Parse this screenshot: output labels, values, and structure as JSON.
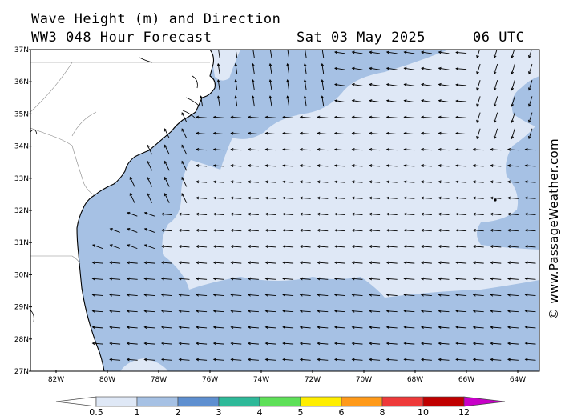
{
  "header": {
    "line1": "Wave Height (m) and Direction",
    "line2": "WW3 048 Hour Forecast",
    "date": "Sat 03 May 2025",
    "time": "06 UTC"
  },
  "credit": "© www.PassageWeather.com",
  "map": {
    "lat_labels": [
      "37N",
      "36N",
      "35N",
      "34N",
      "33N",
      "32N",
      "31N",
      "30N",
      "29N",
      "28N",
      "27N"
    ],
    "lon_labels": [
      "82W",
      "80W",
      "78W",
      "76W",
      "74W",
      "72W",
      "70W",
      "68W",
      "66W",
      "64W"
    ],
    "land_color": "#ffffff",
    "band_colors": {
      "lt_0_5": "#ffffff",
      "0_5_to_1": "#dfe8f6",
      "1_to_2": "#a6c1e4"
    }
  },
  "legend": {
    "labels": [
      "0.5",
      "1",
      "2",
      "3",
      "4",
      "5",
      "6",
      "8",
      "10",
      "12"
    ],
    "colors": [
      "#dfe8f6",
      "#a6c1e4",
      "#5e8fd0",
      "#2eb999",
      "#5ee058",
      "#ffee00",
      "#ff9a1a",
      "#ee3a3a",
      "#c00000",
      "#c800c8"
    ]
  }
}
